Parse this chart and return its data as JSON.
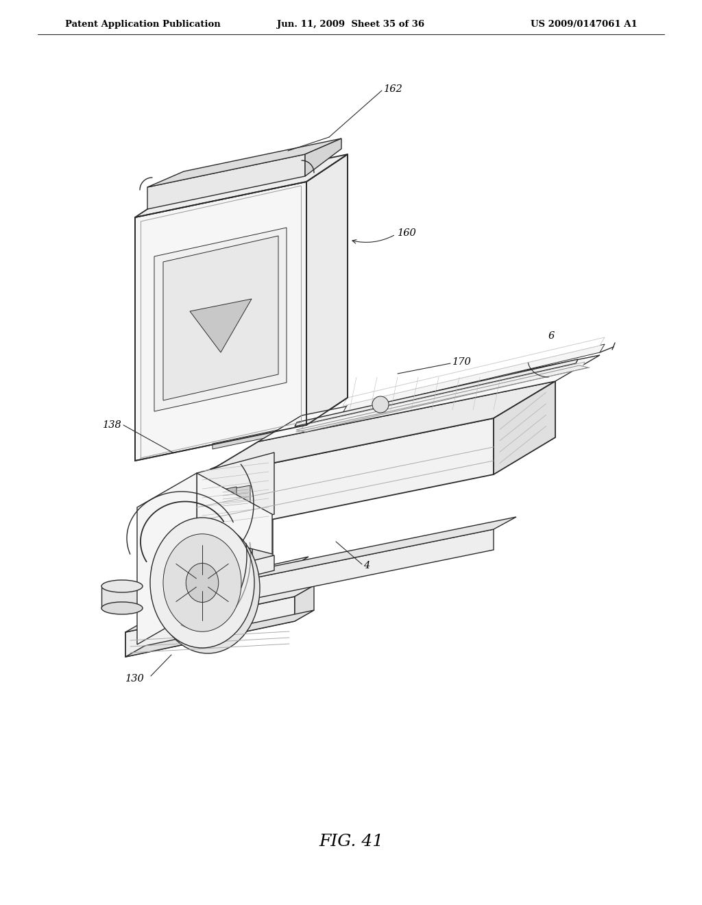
{
  "background_color": "#ffffff",
  "header_left": "Patent Application Publication",
  "header_mid": "Jun. 11, 2009  Sheet 35 of 36",
  "header_right": "US 2009/0147061 A1",
  "figure_label": "FIG. 41",
  "line_color": "#2a2a2a",
  "fig_width": 10.24,
  "fig_height": 13.2,
  "dpi": 100,
  "label_fontsize": 10.5,
  "header_fontsize": 9.5,
  "fig_label_fontsize": 18
}
